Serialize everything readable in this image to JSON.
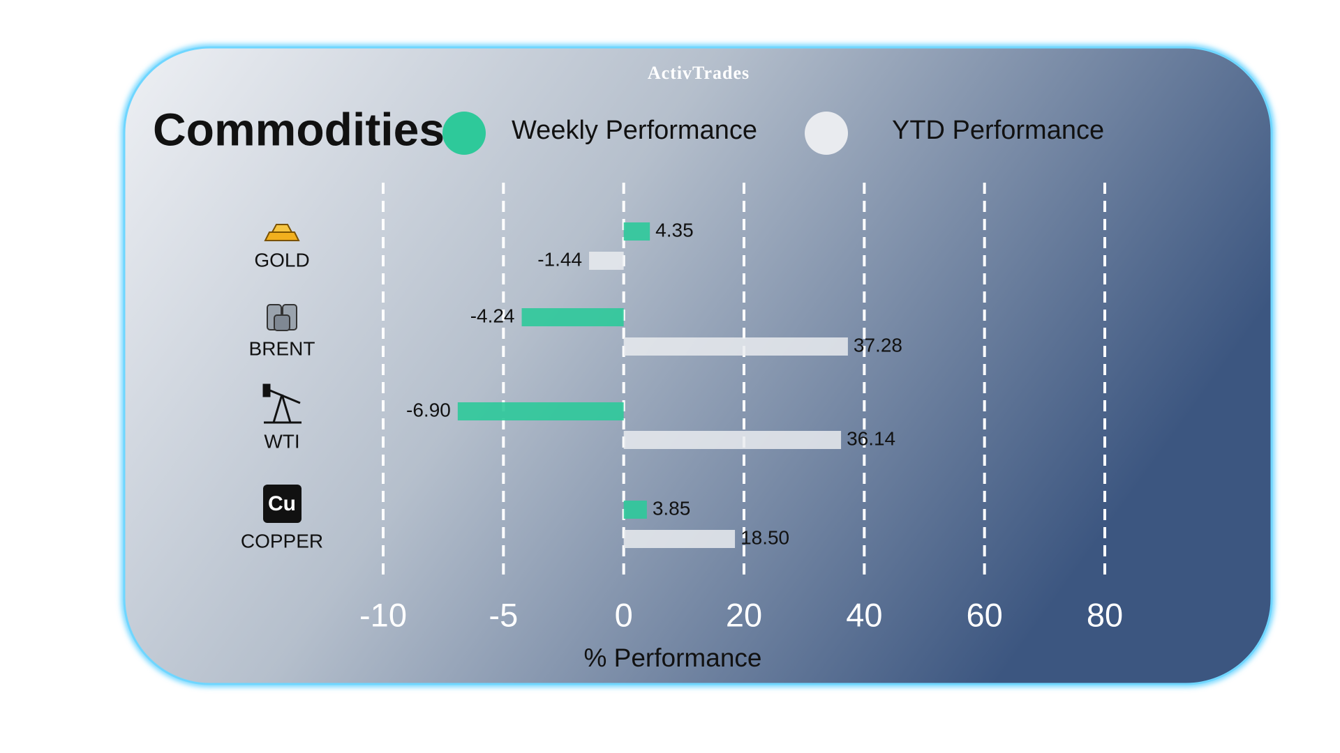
{
  "chart_data": {
    "type": "bar",
    "orientation": "horizontal",
    "logo": "ActivTrades",
    "title": "Commodities",
    "xlabel": "% Performance",
    "categories": [
      "GOLD",
      "BRENT",
      "WTI",
      "COPPER"
    ],
    "series": [
      {
        "name": "Weekly Performance",
        "color": "#2ec99a",
        "values": [
          4.35,
          -4.24,
          -6.9,
          3.85
        ],
        "value_labels": [
          "4.35",
          "-4.24",
          "-6.90",
          "3.85"
        ]
      },
      {
        "name": "YTD Performance",
        "color": "#e9ebef",
        "values": [
          -1.44,
          37.28,
          36.14,
          18.5
        ],
        "value_labels": [
          "-1.44",
          "37.28",
          "36.14",
          "18.50"
        ]
      }
    ],
    "xlim": [
      -10,
      80
    ],
    "xticks": [
      -10,
      -5,
      0,
      20,
      40,
      60,
      80
    ],
    "grid": true,
    "legend": "top"
  }
}
